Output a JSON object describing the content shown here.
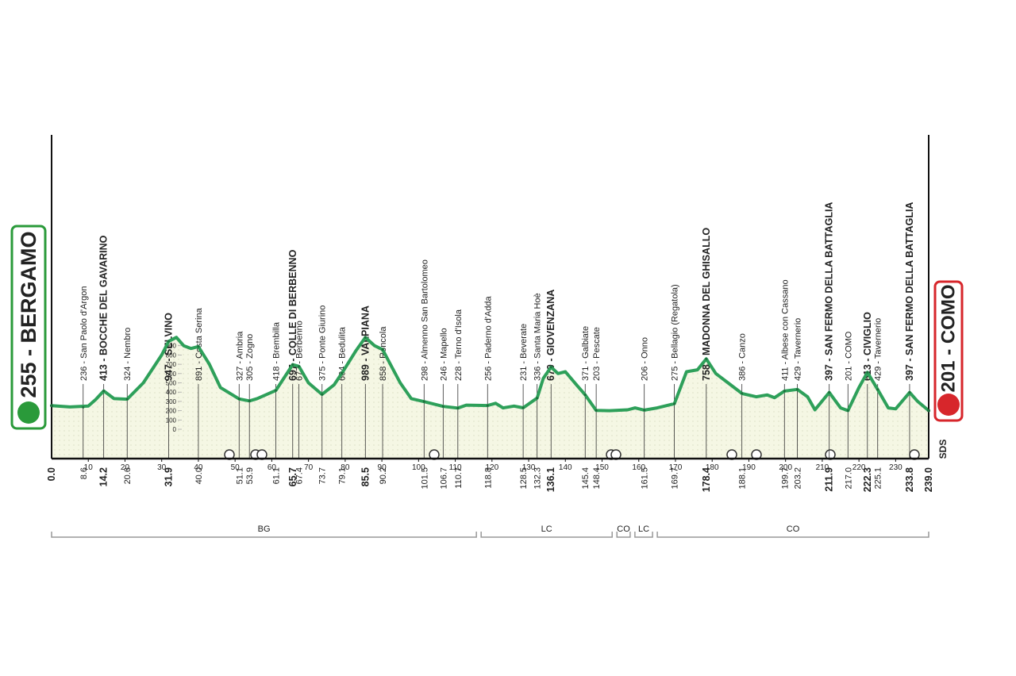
{
  "chart_data": {
    "type": "elevation-profile",
    "start": {
      "label": "255 - BERGAMO",
      "altitude": 255,
      "km": {
        "value": 0,
        "label": "0.0"
      },
      "color": "#2a9a3a"
    },
    "finish": {
      "label": "201 - COMO",
      "altitude": 201,
      "km": {
        "value": 239,
        "label": "239.0"
      },
      "color": "#d7262b"
    },
    "xlim": [
      0,
      239
    ],
    "xticks": [
      10,
      20,
      30,
      40,
      50,
      60,
      70,
      80,
      90,
      100,
      110,
      120,
      130,
      140,
      150,
      160,
      170,
      180,
      190,
      200,
      210,
      220,
      230
    ],
    "ylim": [
      -316,
      3171
    ],
    "yticks": [
      0,
      100,
      200,
      300,
      400,
      500,
      600,
      700,
      800,
      900
    ],
    "color": "#2ea05a",
    "waypoints": [
      {
        "km": 8.6,
        "altitude": 236,
        "label": "236 - San Paolo d'Argon",
        "bold": false
      },
      {
        "km": 14.2,
        "altitude": 413,
        "label": "413 - BOCCHE DEL GAVARINO",
        "bold": true
      },
      {
        "km": 20.6,
        "altitude": 324,
        "label": "324 - Nembro",
        "bold": false
      },
      {
        "km": 31.9,
        "altitude": 947,
        "label": "947 - SELVINO",
        "bold": true
      },
      {
        "km": {
          "value": 40,
          "label": "40.0"
        },
        "altitude": 891,
        "label": "891 - Costa Serina",
        "bold": false
      },
      {
        "km": 51.1,
        "altitude": 327,
        "label": "327 - Ambria",
        "bold": false
      },
      {
        "km": 53.9,
        "altitude": 305,
        "label": "305 - Zogno",
        "bold": false
      },
      {
        "km": 61.1,
        "altitude": 418,
        "label": "418 - Brembilla",
        "bold": false
      },
      {
        "km": 65.7,
        "altitude": 697,
        "label": "697 - COLLE DI BERBENNO",
        "bold": true
      },
      {
        "km": 67.4,
        "altitude": 677,
        "label": "677 - Berbenno",
        "bold": false
      },
      {
        "km": 73.7,
        "altitude": 375,
        "label": "375 - Ponte Giurino",
        "bold": false
      },
      {
        "km": 79.1,
        "altitude": 604,
        "label": "604 - Bedulita",
        "bold": false
      },
      {
        "km": 85.5,
        "altitude": 989,
        "label": "989 - VALPIANA",
        "bold": true
      },
      {
        "km": 90.2,
        "altitude": 858,
        "label": "858 - Roncola",
        "bold": false
      },
      {
        "km": 101.5,
        "altitude": 298,
        "label": "298 - Almenno San Bartolomeo",
        "bold": false
      },
      {
        "km": 106.7,
        "altitude": 246,
        "label": "246 - Mapello",
        "bold": false
      },
      {
        "km": 110.7,
        "altitude": 228,
        "label": "228 - Terno d'Isola",
        "bold": false
      },
      {
        "km": 118.8,
        "altitude": 256,
        "label": "256 - Paderno d'Adda",
        "bold": false
      },
      {
        "km": 128.5,
        "altitude": 231,
        "label": "231 - Beverate",
        "bold": false
      },
      {
        "km": 132.3,
        "altitude": 336,
        "label": "336 - Santa Maria Hoè",
        "bold": false
      },
      {
        "km": 136.1,
        "altitude": 670,
        "label": "670 - GIOVENZANA",
        "bold": true
      },
      {
        "km": 145.4,
        "altitude": 371,
        "label": "371 - Galbiate",
        "bold": false
      },
      {
        "km": 148.4,
        "altitude": 203,
        "label": "203 - Pescate",
        "bold": false
      },
      {
        "km": 161.5,
        "altitude": 206,
        "label": "206 - Onno",
        "bold": false
      },
      {
        "km": 169.7,
        "altitude": 275,
        "label": "275 - Bellagio (Regatola)",
        "bold": false
      },
      {
        "km": 178.4,
        "altitude": 758,
        "label": "758 - MADONNA DEL GHISALLO",
        "bold": true
      },
      {
        "km": 188.1,
        "altitude": 386,
        "label": "386 - Canzo",
        "bold": false
      },
      {
        "km": 199.7,
        "altitude": 411,
        "label": "411 - Albese con Cassano",
        "bold": false
      },
      {
        "km": 203.2,
        "altitude": 429,
        "label": "429 - Tavernerio",
        "bold": false
      },
      {
        "km": 211.9,
        "altitude": 397,
        "label": "397 - SAN FERMO DELLA BATTAGLIA",
        "bold": true
      },
      {
        "km": {
          "value": 217,
          "label": "217.0"
        },
        "altitude": 201,
        "label": "201 - COMO",
        "bold": false
      },
      {
        "km": 222.3,
        "altitude": 613,
        "label": "613 - CIVIGLIO",
        "bold": true
      },
      {
        "km": 225.1,
        "altitude": 429,
        "label": "429 - Tavernerio",
        "bold": false
      },
      {
        "km": 233.8,
        "altitude": 397,
        "label": "397 - SAN FERMO DELLA BATTAGLIA",
        "bold": true
      }
    ],
    "profile": {
      "x": [
        0,
        5,
        10,
        12,
        14.2,
        17,
        20.6,
        25,
        30,
        31.9,
        34,
        36,
        38,
        40,
        43,
        46,
        51.1,
        53.9,
        56,
        61.1,
        65.7,
        67.4,
        70,
        73.7,
        77,
        79.1,
        83,
        85.5,
        88,
        90.2,
        95,
        98,
        101.5,
        106.7,
        110.7,
        113,
        118.8,
        121,
        123,
        126,
        128.5,
        132.3,
        134,
        136.1,
        138,
        140,
        143,
        145.4,
        148.4,
        152,
        157,
        159,
        161.5,
        165,
        169.7,
        173,
        176,
        178.4,
        181,
        185,
        188.1,
        192,
        195,
        197,
        199.7,
        203.2,
        206,
        208,
        211.9,
        215,
        217,
        220,
        222.3,
        225.1,
        228,
        230,
        233.8,
        236,
        239
      ],
      "y": [
        255,
        240,
        250,
        320,
        413,
        330,
        324,
        500,
        800,
        947,
        990,
        900,
        870,
        891,
        700,
        450,
        327,
        305,
        330,
        418,
        697,
        677,
        500,
        375,
        480,
        604,
        850,
        989,
        900,
        858,
        500,
        330,
        298,
        246,
        228,
        260,
        256,
        280,
        230,
        250,
        231,
        336,
        550,
        670,
        600,
        620,
        480,
        371,
        203,
        200,
        210,
        230,
        206,
        230,
        275,
        620,
        640,
        758,
        600,
        480,
        386,
        350,
        370,
        340,
        411,
        429,
        350,
        210,
        397,
        230,
        201,
        450,
        613,
        429,
        230,
        220,
        397,
        300,
        201
      ]
    },
    "provinces": [
      {
        "label": "BG",
        "from": 0,
        "to": 116.4
      },
      {
        "label": "LC",
        "from": 116.4,
        "to": 153.4
      },
      {
        "label": "CO",
        "from": 153.4,
        "to": 158.3
      },
      {
        "label": "LC",
        "from": 158.3,
        "to": 164.4
      },
      {
        "label": "CO",
        "from": 164.4,
        "to": 239
      }
    ],
    "logo": "SDS"
  }
}
